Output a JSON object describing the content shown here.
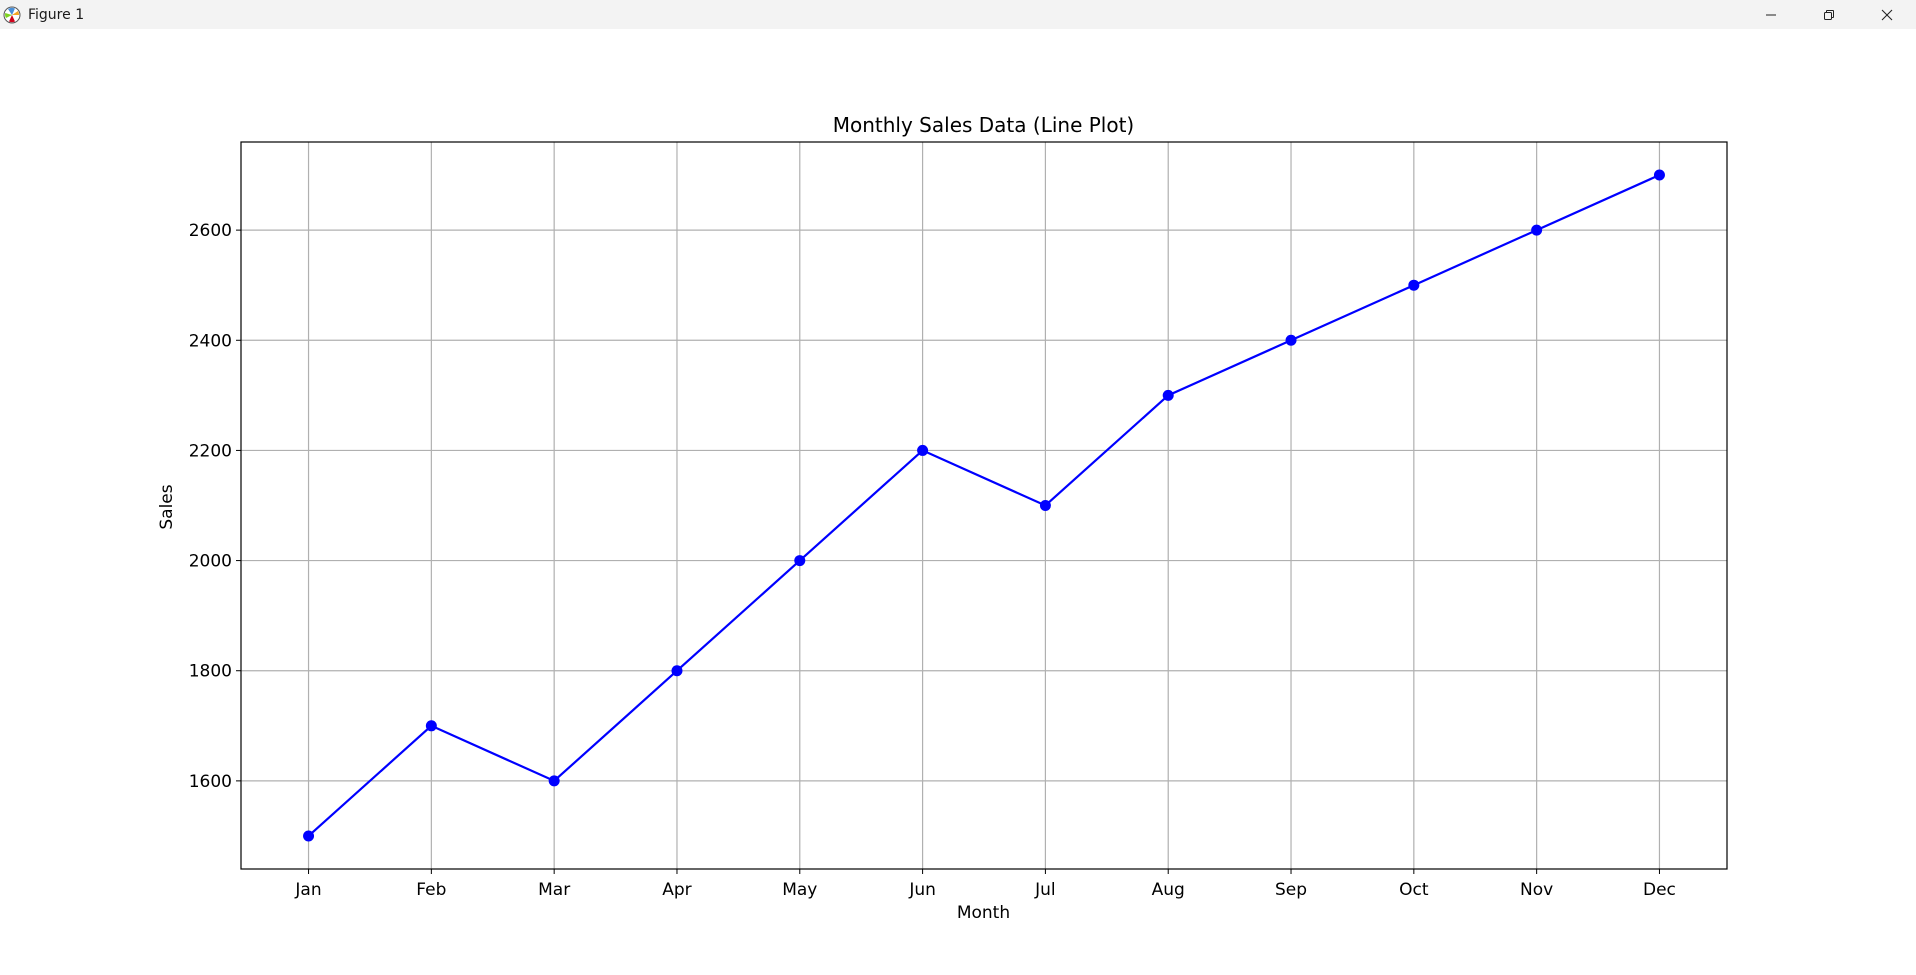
{
  "window": {
    "title": "Figure 1",
    "icon": "matplotlib-logo-icon",
    "controls": [
      "minimize-icon",
      "restore-icon",
      "close-icon"
    ]
  },
  "chart_data": {
    "type": "line",
    "title": "Monthly Sales Data (Line Plot)",
    "xlabel": "Month",
    "ylabel": "Sales",
    "categories": [
      "Jan",
      "Feb",
      "Mar",
      "Apr",
      "May",
      "Jun",
      "Jul",
      "Aug",
      "Sep",
      "Oct",
      "Nov",
      "Dec"
    ],
    "series": [
      {
        "values": [
          1500,
          1700,
          1600,
          1800,
          2000,
          2200,
          2100,
          2300,
          2400,
          2500,
          2600,
          2700
        ],
        "color": "#0000ff",
        "marker": "circle"
      }
    ],
    "ylim": [
      1440,
      2760
    ],
    "yticks": [
      1600,
      1800,
      2000,
      2200,
      2400,
      2600
    ],
    "grid": true
  }
}
